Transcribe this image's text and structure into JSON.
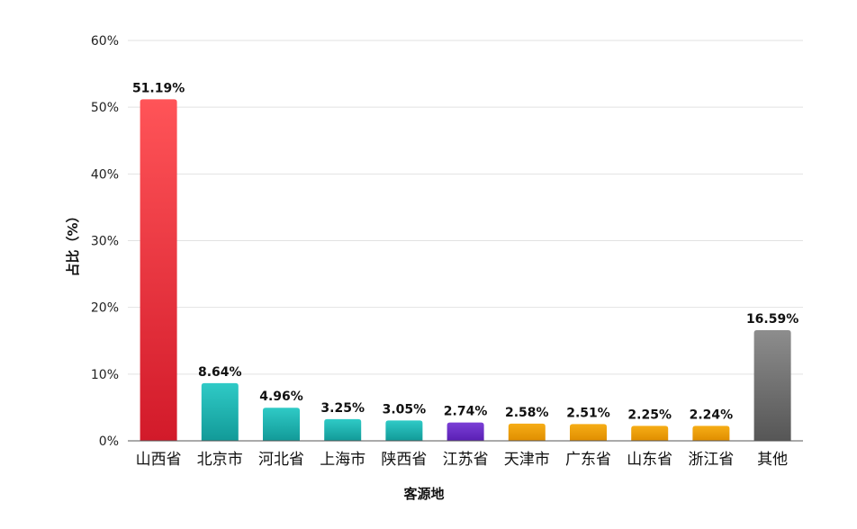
{
  "chart_data": {
    "type": "bar",
    "xlabel": "客源地",
    "ylabel": "占比（%）",
    "ylim": [
      0,
      60
    ],
    "yticks": [
      0,
      10,
      20,
      30,
      40,
      50,
      60
    ],
    "ytick_labels": [
      "0%",
      "10%",
      "20%",
      "30%",
      "40%",
      "50%",
      "60%"
    ],
    "grid": true,
    "legend": "none",
    "categories": [
      "山西省",
      "北京市",
      "河北省",
      "上海市",
      "陕西省",
      "江苏省",
      "天津市",
      "广东省",
      "山东省",
      "浙江省",
      "其他"
    ],
    "values": [
      51.19,
      8.64,
      4.96,
      3.25,
      3.05,
      2.74,
      2.58,
      2.51,
      2.25,
      2.24,
      16.59
    ],
    "data_labels": [
      "51.19%",
      "8.64%",
      "4.96%",
      "3.25%",
      "3.05%",
      "2.74%",
      "2.58%",
      "2.51%",
      "2.25%",
      "2.24%",
      "16.59%"
    ],
    "bar_colors": [
      [
        "#ff5458",
        "#d21a2a"
      ],
      [
        "#2fcac6",
        "#129a98"
      ],
      [
        "#2fcac6",
        "#129a98"
      ],
      [
        "#2fcac6",
        "#129a98"
      ],
      [
        "#2fcac6",
        "#129a98"
      ],
      [
        "#7b3fd6",
        "#5a1fb4"
      ],
      [
        "#f6ad16",
        "#e08e00"
      ],
      [
        "#f6ad16",
        "#e08e00"
      ],
      [
        "#f6ad16",
        "#e08e00"
      ],
      [
        "#f6ad16",
        "#e08e00"
      ],
      [
        "#8d8d8d",
        "#565656"
      ]
    ]
  }
}
